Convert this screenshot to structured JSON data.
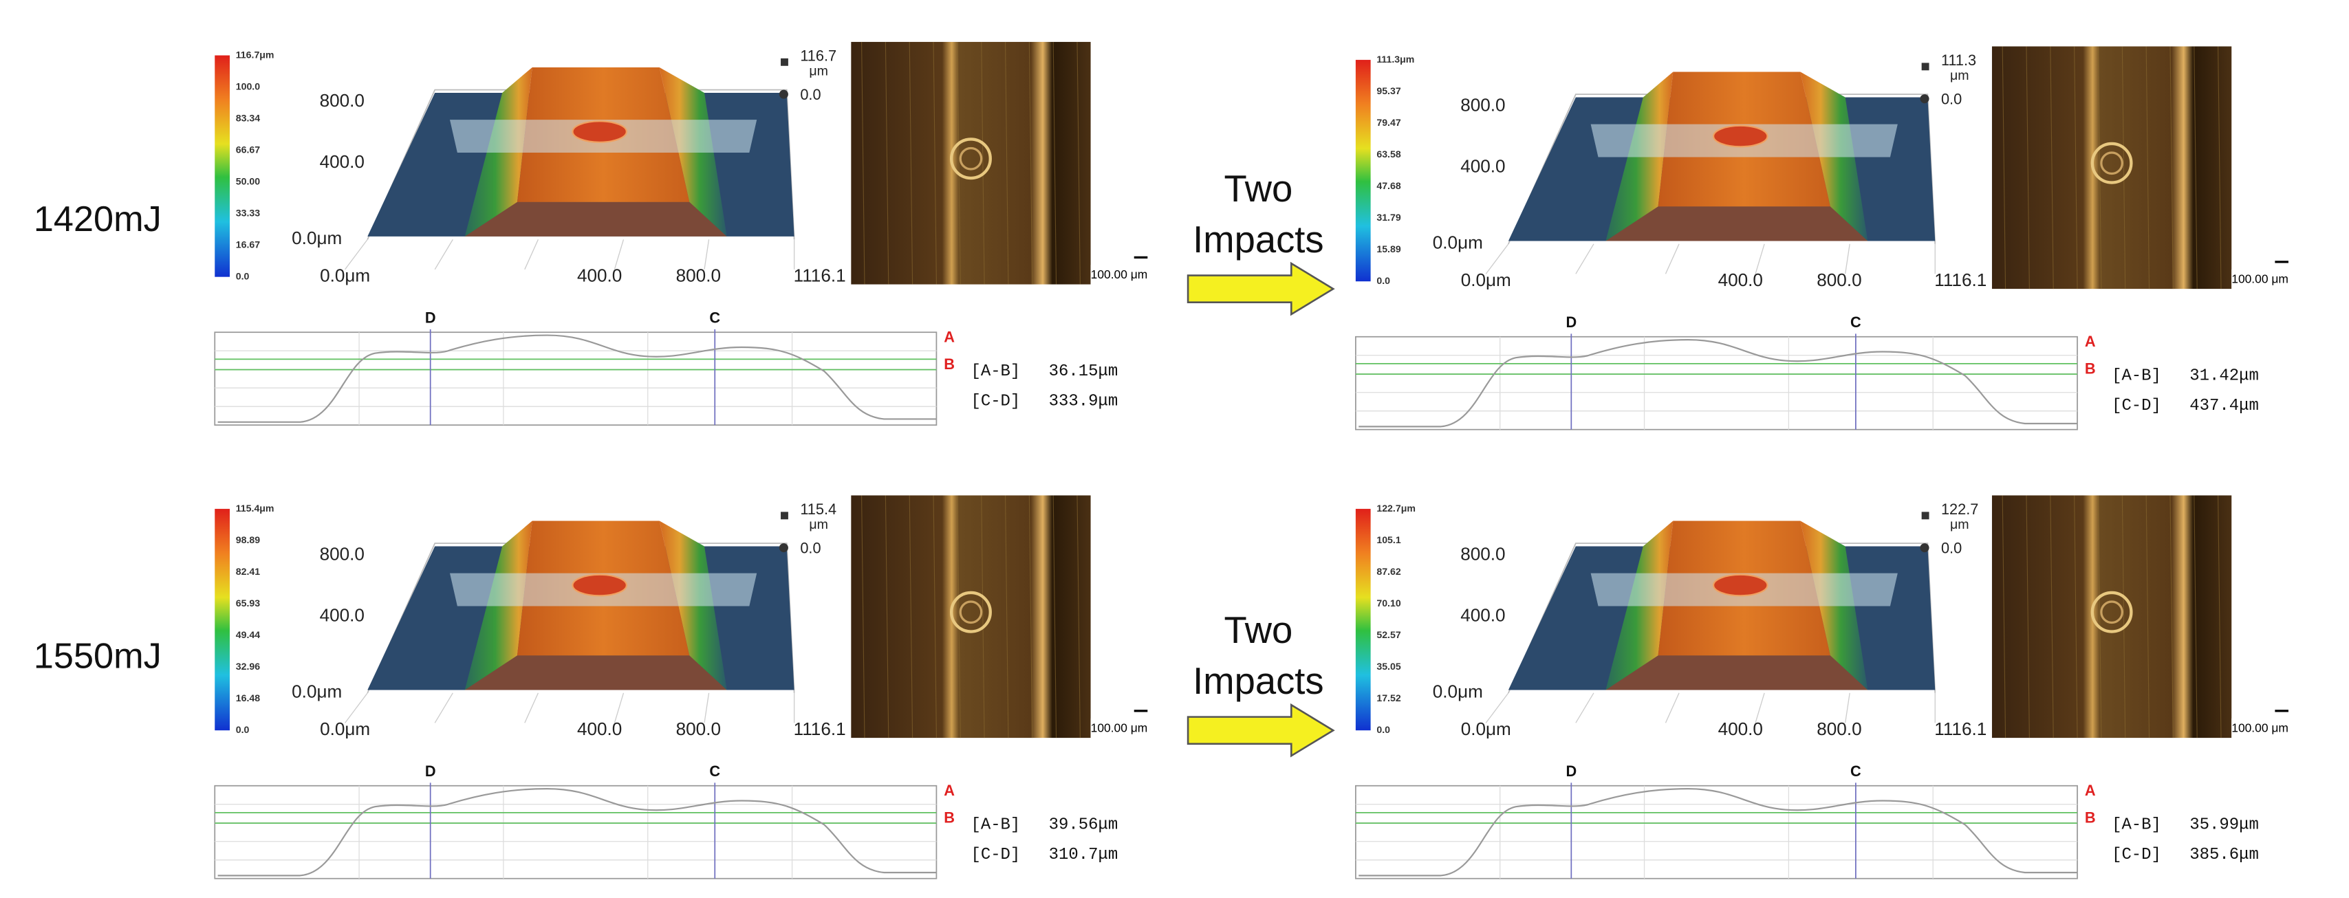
{
  "rows": [
    {
      "label": "1420mJ"
    },
    {
      "label": "1550mJ"
    }
  ],
  "arrows": [
    {
      "lines": [
        "Two",
        "Impacts"
      ]
    },
    {
      "lines": [
        "Two",
        "Impacts"
      ]
    }
  ],
  "panels": [
    {
      "colorbar": [
        "116.7μm",
        "100.0",
        "83.34",
        "66.67",
        "50.00",
        "33.33",
        "16.67",
        "0.0"
      ],
      "z_max": "116.7",
      "z_unit": "μm",
      "z_min": "0.0",
      "y_axis": [
        "800.0",
        "400.0",
        "0.0μm"
      ],
      "x_axis": [
        "0.0μm",
        "400.0",
        "800.0",
        "1116.1"
      ],
      "scale_bar": "100.00 μm",
      "profile": {
        "markers": {
          "D": "D",
          "C": "C",
          "A": "A",
          "B": "B"
        },
        "measurements": [
          {
            "label": "[A-B]",
            "value": "36.15μm"
          },
          {
            "label": "[C-D]",
            "value": "333.9μm"
          }
        ]
      }
    },
    {
      "colorbar": [
        "111.3μm",
        "95.37",
        "79.47",
        "63.58",
        "47.68",
        "31.79",
        "15.89",
        "0.0"
      ],
      "z_max": "111.3",
      "z_unit": "μm",
      "z_min": "0.0",
      "y_axis": [
        "800.0",
        "400.0",
        "0.0μm"
      ],
      "x_axis": [
        "0.0μm",
        "400.0",
        "800.0",
        "1116.1"
      ],
      "scale_bar": "100.00 μm",
      "profile": {
        "markers": {
          "D": "D",
          "C": "C",
          "A": "A",
          "B": "B"
        },
        "measurements": [
          {
            "label": "[A-B]",
            "value": "31.42μm"
          },
          {
            "label": "[C-D]",
            "value": "437.4μm"
          }
        ]
      }
    },
    {
      "colorbar": [
        "115.4μm",
        "98.89",
        "82.41",
        "65.93",
        "49.44",
        "32.96",
        "16.48",
        "0.0"
      ],
      "z_max": "115.4",
      "z_unit": "μm",
      "z_min": "0.0",
      "y_axis": [
        "800.0",
        "400.0",
        "0.0μm"
      ],
      "x_axis": [
        "0.0μm",
        "400.0",
        "800.0",
        "1116.1"
      ],
      "scale_bar": "100.00 μm",
      "profile": {
        "markers": {
          "D": "D",
          "C": "C",
          "A": "A",
          "B": "B"
        },
        "measurements": [
          {
            "label": "[A-B]",
            "value": "39.56μm"
          },
          {
            "label": "[C-D]",
            "value": "310.7μm"
          }
        ]
      }
    },
    {
      "colorbar": [
        "122.7μm",
        "105.1",
        "87.62",
        "70.10",
        "52.57",
        "35.05",
        "17.52",
        "0.0"
      ],
      "z_max": "122.7",
      "z_unit": "μm",
      "z_min": "0.0",
      "y_axis": [
        "800.0",
        "400.0",
        "0.0μm"
      ],
      "x_axis": [
        "0.0μm",
        "400.0",
        "800.0",
        "1116.1"
      ],
      "scale_bar": "100.00 μm",
      "profile": {
        "markers": {
          "D": "D",
          "C": "C",
          "A": "A",
          "B": "B"
        },
        "measurements": [
          {
            "label": "[A-B]",
            "value": "35.99μm"
          },
          {
            "label": "[C-D]",
            "value": "385.6μm"
          }
        ]
      }
    }
  ]
}
